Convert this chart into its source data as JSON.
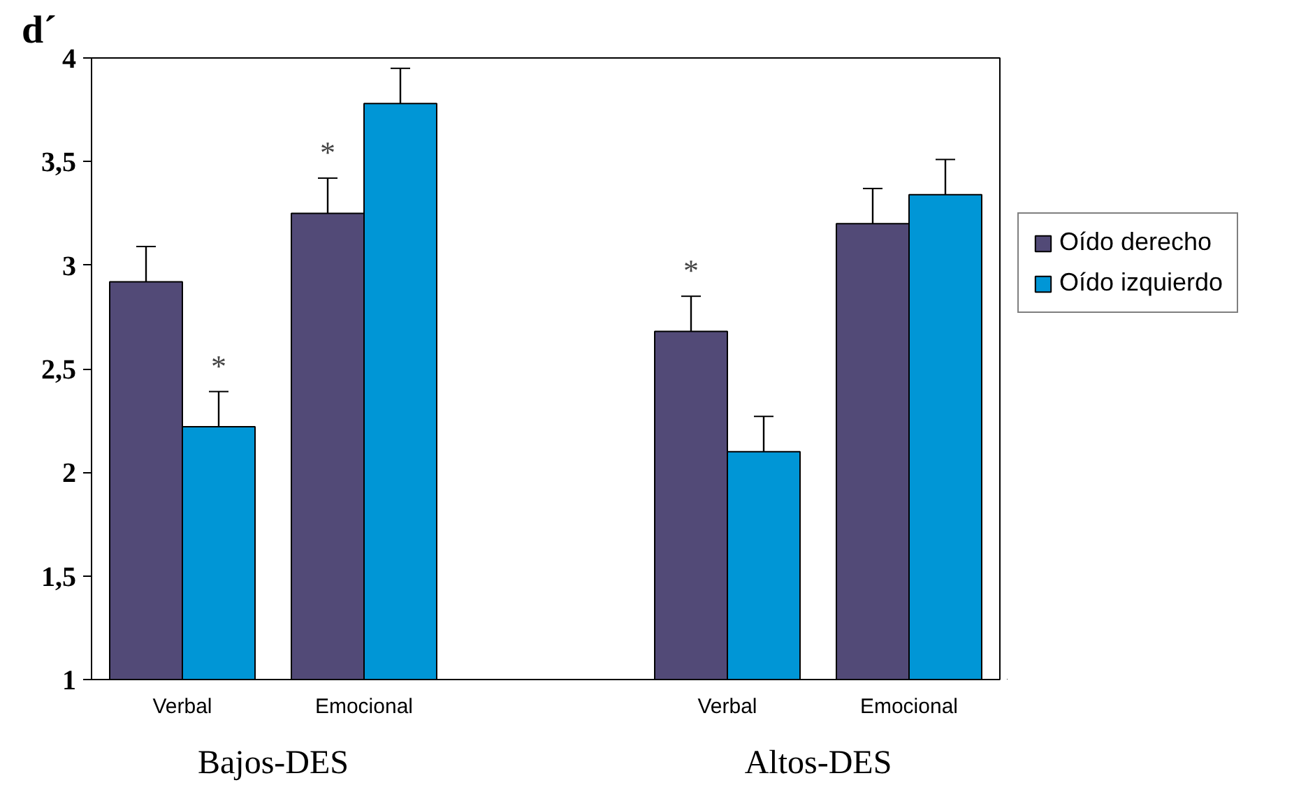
{
  "chart_data": {
    "type": "bar",
    "ylabel": "d´",
    "categories": [
      "Verbal",
      "Emocional",
      null,
      "Verbal",
      "Emocional"
    ],
    "series": [
      {
        "name": "Oído derecho",
        "color": "#524a77",
        "values": [
          2.92,
          3.25,
          null,
          2.68,
          3.2
        ],
        "errors": [
          0.17,
          0.17,
          null,
          0.17,
          0.17
        ],
        "value_labels": [
          null,
          "*",
          null,
          "*",
          null
        ]
      },
      {
        "name": "Oído izquierdo",
        "color": "#0096d6",
        "values": [
          2.22,
          3.78,
          null,
          2.1,
          3.34
        ],
        "errors": [
          0.17,
          0.17,
          null,
          0.17,
          0.17
        ],
        "value_labels": [
          "*",
          null,
          null,
          null,
          null
        ]
      }
    ],
    "ylim": [
      1,
      4
    ],
    "yticks": [
      1,
      {
        "value": 1.5,
        "label": "1,5"
      },
      2,
      {
        "value": 2.5,
        "label": "2,5"
      },
      3,
      {
        "value": 3.5,
        "label": "3,5"
      },
      4
    ],
    "annotations": [
      "Bajos-DES",
      "Altos-DES"
    ],
    "grid": false,
    "legend": "right"
  }
}
